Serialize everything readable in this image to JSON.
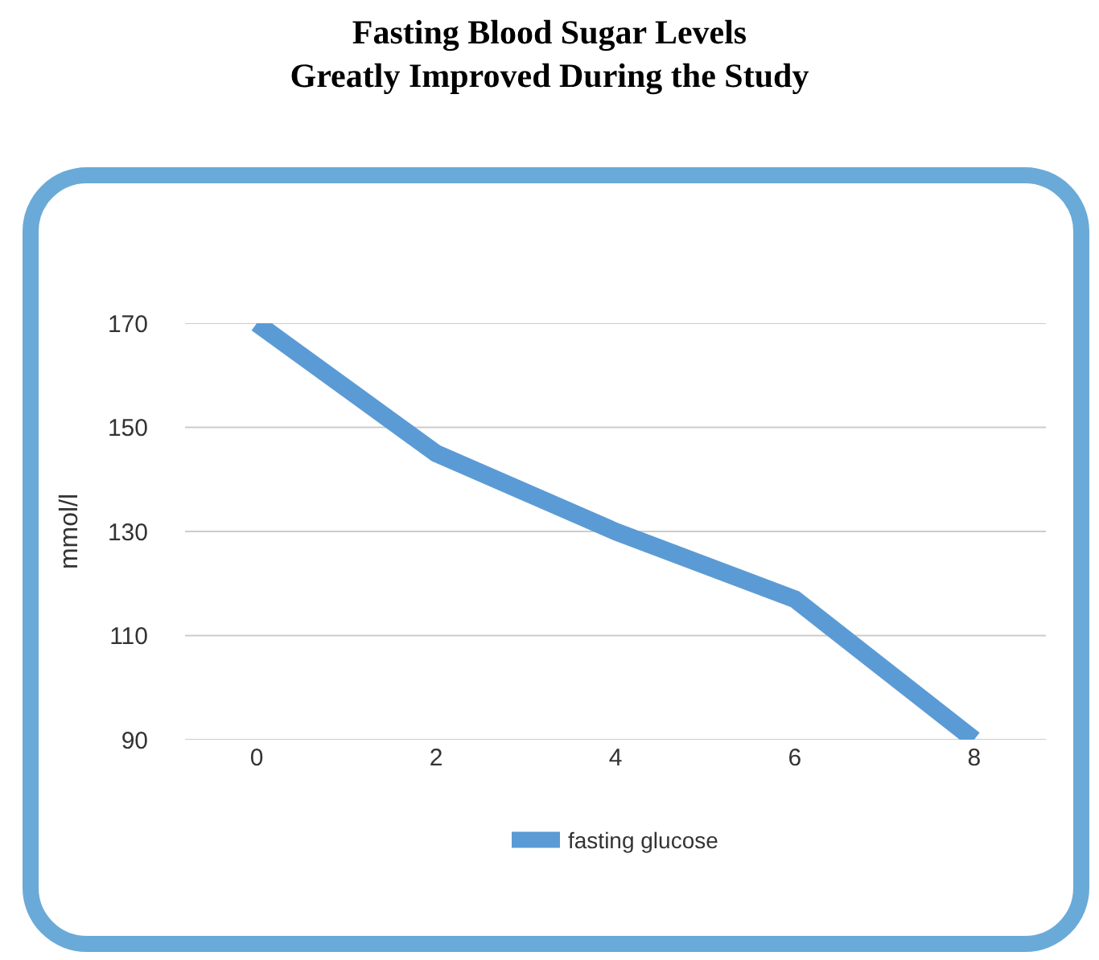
{
  "chart_data": {
    "type": "line",
    "title": "Fasting Blood Sugar Levels Greatly Improved During the Study",
    "ylabel": "mmol/l",
    "x": [
      0,
      2,
      4,
      6,
      8
    ],
    "series": [
      {
        "name": "fasting glucose",
        "color": "#5b9bd5",
        "values": [
          170,
          145,
          130,
          117,
          90
        ]
      }
    ],
    "xlim": [
      -0.8,
      8.8
    ],
    "xticks": [
      0,
      2,
      4,
      6,
      8
    ],
    "ylim": [
      90,
      170
    ],
    "yticks": [
      90,
      110,
      130,
      150,
      170
    ],
    "grid": "y",
    "legend": "bottom",
    "marker": "none",
    "line_style": "solid"
  }
}
